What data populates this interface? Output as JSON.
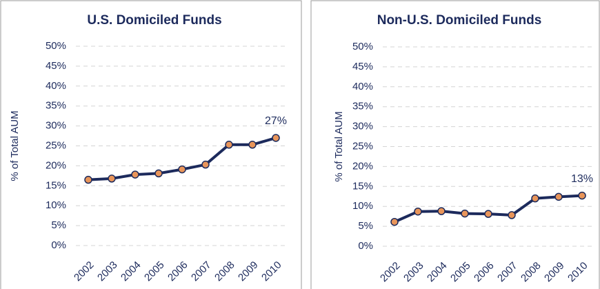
{
  "chart_data": [
    {
      "type": "line",
      "title": "U.S. Domiciled Funds",
      "y_label": "% of Total AUM",
      "categories": [
        "2002",
        "2003",
        "2004",
        "2005",
        "2006",
        "2007",
        "2008",
        "2009",
        "2010"
      ],
      "series": [
        {
          "name": "U.S. Domiciled Funds",
          "color": "#1c2a5c",
          "marker_color": "#e8955a",
          "values": [
            16.5,
            16.8,
            17.8,
            18.1,
            19.1,
            20.3,
            25.3,
            25.3,
            27
          ],
          "value_labels": [
            null,
            null,
            null,
            null,
            null,
            null,
            null,
            null,
            "27%"
          ]
        }
      ],
      "ylim": [
        0,
        50
      ],
      "yticks": [
        {
          "value": 0,
          "label": "0%"
        },
        {
          "value": 5,
          "label": "5%"
        },
        {
          "value": 10,
          "label": "10%"
        },
        {
          "value": 15,
          "label": "15%"
        },
        {
          "value": 20,
          "label": "20%"
        },
        {
          "value": 25,
          "label": "25%"
        },
        {
          "value": 30,
          "label": "30%"
        },
        {
          "value": 35,
          "label": "35%"
        },
        {
          "value": 40,
          "label": "40%"
        },
        {
          "value": 45,
          "label": "45%"
        },
        {
          "value": 50,
          "label": "50%"
        }
      ],
      "grid": true
    },
    {
      "type": "line",
      "title": "Non-U.S. Domiciled Funds",
      "y_label": "% of Total AUM",
      "categories": [
        "2002",
        "2003",
        "2004",
        "2005",
        "2006",
        "2007",
        "2008",
        "2009",
        "2010"
      ],
      "series": [
        {
          "name": "Non-U.S. Domiciled Funds",
          "color": "#1c2a5c",
          "marker_color": "#e8955a",
          "values": [
            6.1,
            8.7,
            8.8,
            8.2,
            8.1,
            7.8,
            12,
            12.4,
            12.7
          ],
          "value_labels": [
            null,
            null,
            null,
            null,
            null,
            null,
            null,
            null,
            "13%"
          ]
        }
      ],
      "ylim": [
        0,
        50
      ],
      "yticks": [
        {
          "value": 0,
          "label": "0%"
        },
        {
          "value": 5,
          "label": "5%"
        },
        {
          "value": 10,
          "label": "10%"
        },
        {
          "value": 15,
          "label": "15%"
        },
        {
          "value": 20,
          "label": "20%"
        },
        {
          "value": 25,
          "label": "25%"
        },
        {
          "value": 30,
          "label": "30%"
        },
        {
          "value": 35,
          "label": "35%"
        },
        {
          "value": 40,
          "label": "40%"
        },
        {
          "value": 45,
          "label": "45%"
        },
        {
          "value": 50,
          "label": "50%"
        }
      ],
      "grid": true
    }
  ]
}
